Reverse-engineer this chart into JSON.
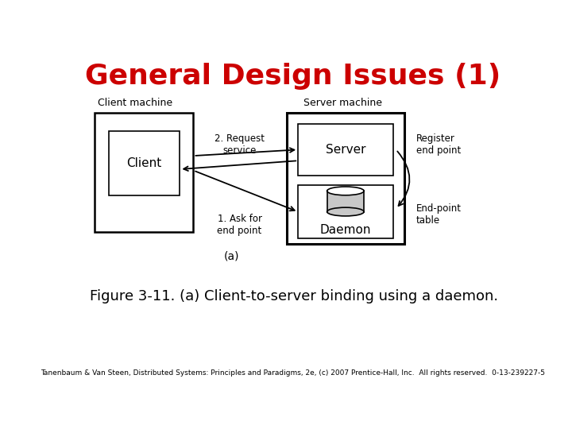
{
  "title": "General Design Issues (1)",
  "title_color": "#cc0000",
  "title_fontsize": 26,
  "figure_caption": "Figure 3-11. (a) Client-to-server binding using a daemon.",
  "caption_fontsize": 13,
  "footer": "Tanenbaum & Van Steen, Distributed Systems: Principles and Paradigms, 2e, (c) 2007 Prentice-Hall, Inc.  All rights reserved.  0-13-239227-5",
  "footer_fontsize": 6.5,
  "bg_color": "#ffffff",
  "label_client_machine": "Client machine",
  "label_server_machine": "Server machine",
  "label_client": "Client",
  "label_server": "Server",
  "label_daemon": "Daemon",
  "label_request": "2. Request\nservice",
  "label_ask": "1. Ask for\nend point",
  "label_register": "Register\nend point",
  "label_endpoint": "End-point\ntable",
  "label_a": "(a)"
}
